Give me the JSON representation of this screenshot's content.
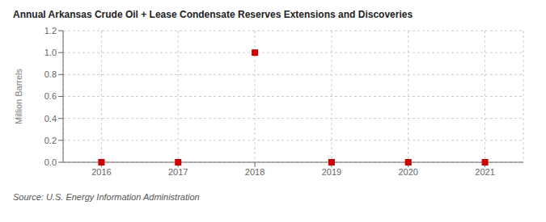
{
  "chart_data": {
    "type": "scatter",
    "title": "Annual Arkansas Crude Oil + Lease Condensate Reserves Extensions and Discoveries",
    "y_label": "Million Barrels",
    "annotations": [
      "Source: U.S. Energy Information Administration"
    ],
    "x": [
      2016,
      2017,
      2018,
      2019,
      2020,
      2021
    ],
    "values": [
      0.0,
      0.0,
      1.0,
      0.0,
      0.0,
      0.0
    ],
    "xlim": [
      2015.5,
      2021.5
    ],
    "ylim": [
      0.0,
      1.2
    ],
    "xticks": [
      2016,
      2017,
      2018,
      2019,
      2020,
      2021
    ],
    "yticks": [
      {
        "value": 0.0,
        "label": "0.0"
      },
      0.2,
      0.4,
      0.6,
      0.8,
      {
        "value": 1.0,
        "label": "1.0"
      },
      1.2
    ],
    "color": "#cc0000",
    "marker": "square",
    "grid": true
  }
}
